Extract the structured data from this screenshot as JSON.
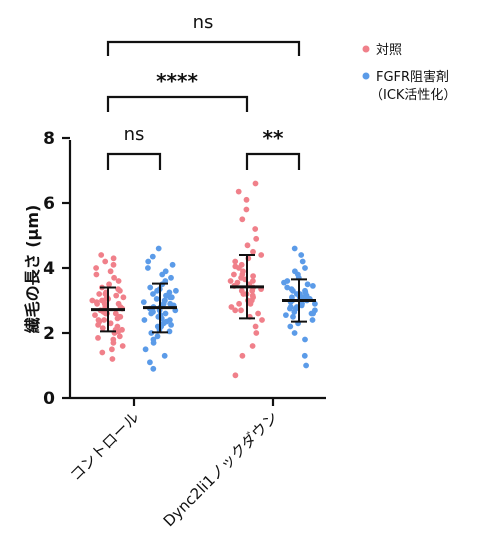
{
  "chart_data": {
    "type": "scatter",
    "ylabel": "繊毛の長さ (μm)",
    "ylim": [
      0,
      8
    ],
    "yticks": [
      0,
      2,
      4,
      6,
      8
    ],
    "categories": [
      "コントロール",
      "Dync2li1ノックダウン"
    ],
    "colors": {
      "control": "#f0808a",
      "inhibitor": "#5b9be8"
    },
    "legend": [
      {
        "name": "対照",
        "color": "#f0808a"
      },
      {
        "name": "FGFR阻害剤",
        "name2": "（ICK活性化）",
        "color": "#5b9be8"
      }
    ],
    "groups": [
      {
        "category": "コントロール",
        "series": "対照",
        "color": "#f0808a",
        "mean": 2.72,
        "sd_low": 2.05,
        "sd_high": 3.4,
        "values": [
          1.2,
          1.4,
          1.5,
          1.6,
          1.7,
          1.8,
          1.85,
          1.9,
          2.0,
          2.05,
          2.1,
          2.15,
          2.2,
          2.25,
          2.3,
          2.35,
          2.4,
          2.45,
          2.5,
          2.5,
          2.55,
          2.6,
          2.6,
          2.65,
          2.7,
          2.7,
          2.75,
          2.8,
          2.8,
          2.85,
          2.9,
          2.9,
          2.95,
          3.0,
          3.0,
          3.05,
          3.1,
          3.1,
          3.15,
          3.2,
          3.25,
          3.3,
          3.35,
          3.4,
          3.5,
          3.6,
          3.7,
          3.8,
          3.9,
          4.0,
          4.1,
          4.2,
          4.3,
          4.4,
          2.4,
          2.9,
          3.2,
          2.1,
          2.6,
          3.0
        ]
      },
      {
        "category": "コントロール",
        "series": "FGFR阻害剤",
        "color": "#5b9be8",
        "mean": 2.78,
        "sd_low": 2.02,
        "sd_high": 3.52,
        "values": [
          0.9,
          1.1,
          1.3,
          1.5,
          1.7,
          1.8,
          1.9,
          2.0,
          2.05,
          2.1,
          2.2,
          2.25,
          2.3,
          2.35,
          2.4,
          2.45,
          2.5,
          2.55,
          2.6,
          2.65,
          2.7,
          2.7,
          2.75,
          2.8,
          2.85,
          2.9,
          2.95,
          3.0,
          3.0,
          3.05,
          3.1,
          3.15,
          3.2,
          3.25,
          3.3,
          3.35,
          3.4,
          3.5,
          3.6,
          3.7,
          3.8,
          3.9,
          4.0,
          4.1,
          4.2,
          4.35,
          4.6,
          2.4,
          2.8,
          3.1,
          2.6,
          2.9,
          3.3,
          2.2
        ]
      },
      {
        "category": "Dync2li1ノックダウン",
        "series": "対照",
        "color": "#f0808a",
        "mean": 3.42,
        "sd_low": 2.45,
        "sd_high": 4.4,
        "values": [
          0.7,
          1.3,
          1.6,
          2.0,
          2.2,
          2.4,
          2.5,
          2.6,
          2.7,
          2.8,
          2.9,
          3.0,
          3.0,
          3.1,
          3.15,
          3.2,
          3.3,
          3.35,
          3.4,
          3.45,
          3.5,
          3.55,
          3.6,
          3.65,
          3.7,
          3.75,
          3.8,
          3.9,
          4.0,
          4.1,
          4.2,
          4.3,
          4.4,
          4.5,
          4.7,
          4.9,
          5.2,
          5.5,
          5.8,
          6.1,
          6.35,
          6.6,
          3.3,
          3.6,
          2.9,
          3.2,
          3.8,
          4.05,
          2.7,
          3.45
        ]
      },
      {
        "category": "Dync2li1ノックダウン",
        "series": "FGFR阻害剤",
        "color": "#5b9be8",
        "mean": 3.0,
        "sd_low": 2.35,
        "sd_high": 3.65,
        "values": [
          1.0,
          1.3,
          1.8,
          2.0,
          2.2,
          2.3,
          2.4,
          2.5,
          2.55,
          2.6,
          2.65,
          2.7,
          2.75,
          2.8,
          2.85,
          2.9,
          2.95,
          3.0,
          3.0,
          3.05,
          3.1,
          3.1,
          3.15,
          3.2,
          3.25,
          3.3,
          3.35,
          3.4,
          3.5,
          3.55,
          3.6,
          3.7,
          3.8,
          3.9,
          4.0,
          4.2,
          4.4,
          4.6,
          2.8,
          3.2,
          2.9,
          3.3,
          2.6,
          3.45,
          3.1,
          2.75
        ]
      }
    ],
    "significance": [
      {
        "label": "ns",
        "between": [
          "control-対照",
          "knockdown-FGFR阻害剤"
        ]
      },
      {
        "label": "****",
        "between": [
          "control-対照",
          "knockdown-対照"
        ]
      },
      {
        "label": "ns",
        "between": [
          "control-対照",
          "control-FGFR阻害剤"
        ]
      },
      {
        "label": "**",
        "between": [
          "knockdown-対照",
          "knockdown-FGFR阻害剤"
        ]
      }
    ]
  }
}
